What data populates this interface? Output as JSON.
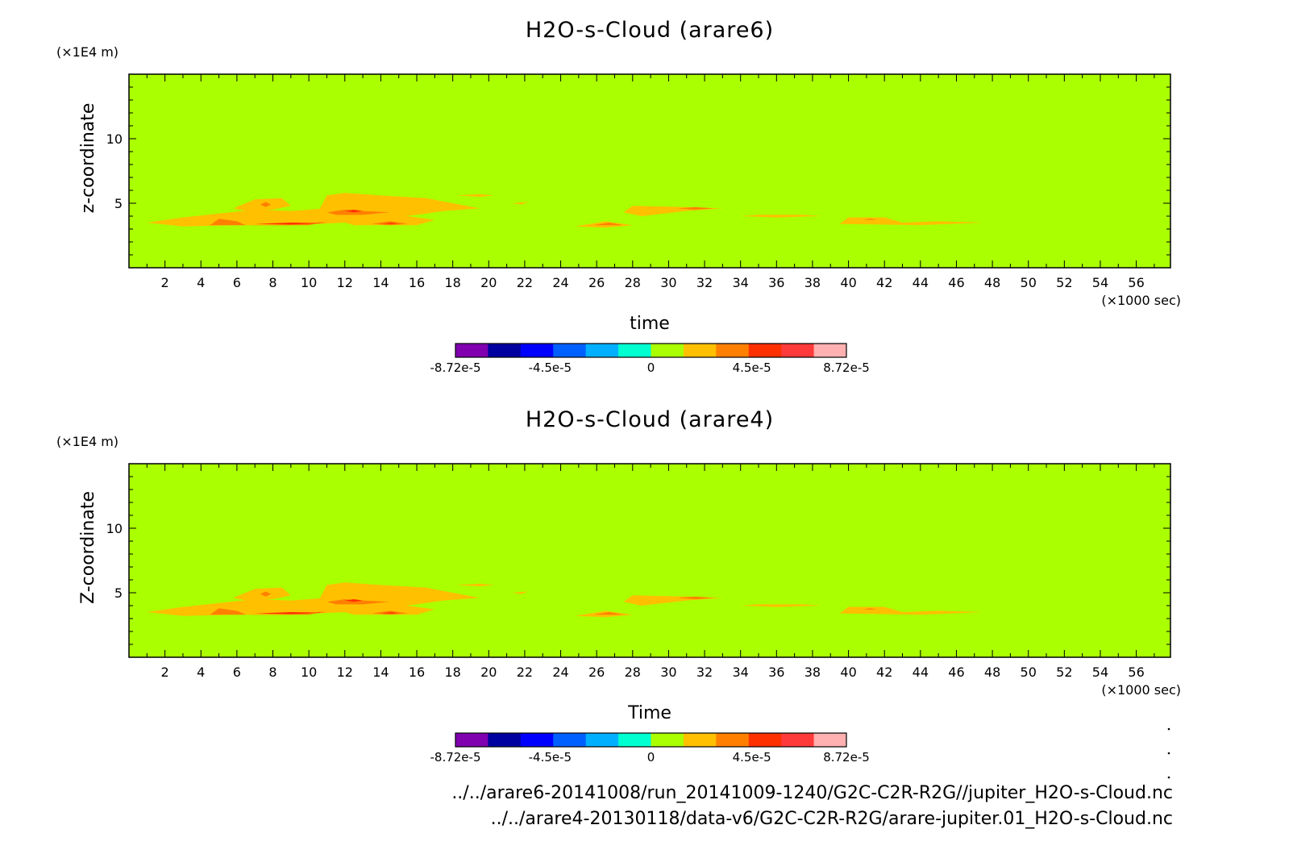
{
  "source_files": [
    "../../arare6-20141008/run_20141009-1240/G2C-C2R-R2G//jupiter_H2O-s-Cloud.nc",
    "../../arare4-20130118/data-v6/G2C-C2R-R2G/arare-jupiter.01_H2O-s-Cloud.nc"
  ],
  "colors": {
    "background_field": "#aaff00",
    "colorbar": [
      "#8000b0",
      "#0000a0",
      "#0000ff",
      "#0060ff",
      "#00b0ff",
      "#00ffd0",
      "#aaff00",
      "#ffc000",
      "#ff8000",
      "#ff3000",
      "#ff3a3a",
      "#ffb0b0"
    ]
  },
  "chart_data": [
    {
      "type": "heatmap",
      "title": "H2O-s-Cloud (arare6)",
      "xlabel": "time",
      "ylabel": "z-coordinate",
      "x_unit": "(×1000 sec)",
      "y_unit": "(×1E4 m)",
      "xlim": [
        0,
        57.9
      ],
      "ylim": [
        0,
        15
      ],
      "x_ticks": [
        2,
        4,
        6,
        8,
        10,
        12,
        14,
        16,
        18,
        20,
        22,
        24,
        26,
        28,
        30,
        32,
        34,
        36,
        38,
        40,
        42,
        44,
        46,
        48,
        50,
        52,
        54,
        56
      ],
      "y_ticks": [
        5,
        10
      ],
      "colorbar": {
        "tick_labels": [
          "-8.72e-5",
          "-4.5e-5",
          "0",
          "4.5e-5",
          "8.72e-5"
        ],
        "tick_values": [
          -8.72e-05,
          -4.5e-05,
          0,
          4.5e-05,
          8.72e-05
        ],
        "levels": 12
      },
      "field_value": 0,
      "features": [
        {
          "level": 1,
          "pts": [
            [
              1,
              3.5
            ],
            [
              3,
              3.2
            ],
            [
              6,
              3.3
            ],
            [
              9,
              3.3
            ],
            [
              12,
              3.5
            ],
            [
              12.5,
              3.3
            ],
            [
              16,
              3.3
            ],
            [
              17,
              3.7
            ],
            [
              14,
              4.3
            ],
            [
              12,
              4.6
            ],
            [
              11,
              4.6
            ],
            [
              9,
              4.4
            ],
            [
              7,
              4.5
            ],
            [
              5,
              4.2
            ],
            [
              3,
              3.9
            ]
          ]
        },
        {
          "level": 1,
          "pts": [
            [
              5.8,
              4.6
            ],
            [
              7,
              5.3
            ],
            [
              8.5,
              5.4
            ],
            [
              9,
              4.8
            ],
            [
              8,
              4.5
            ],
            [
              6.5,
              4.4
            ]
          ]
        },
        {
          "level": 1,
          "pts": [
            [
              10.5,
              4.3
            ],
            [
              11,
              5.6
            ],
            [
              12,
              5.8
            ],
            [
              14,
              5.6
            ],
            [
              16.5,
              5.4
            ],
            [
              18,
              5.0
            ],
            [
              19.5,
              4.6
            ],
            [
              17.5,
              4.4
            ],
            [
              16,
              4.1
            ],
            [
              14,
              3.8
            ],
            [
              12.5,
              3.9
            ]
          ]
        },
        {
          "level": 1,
          "pts": [
            [
              18.2,
              5.6
            ],
            [
              19.5,
              5.7
            ],
            [
              20.3,
              5.6
            ],
            [
              19.5,
              5.5
            ]
          ]
        },
        {
          "level": 1,
          "pts": [
            [
              21.3,
              5.0
            ],
            [
              22.2,
              5.1
            ],
            [
              21.8,
              4.9
            ]
          ]
        },
        {
          "level": 1,
          "pts": [
            [
              24.8,
              3.2
            ],
            [
              26.5,
              3.6
            ],
            [
              28,
              3.3
            ],
            [
              26.5,
              3.1
            ]
          ]
        },
        {
          "level": 1,
          "pts": [
            [
              27.5,
              4.3
            ],
            [
              28,
              4.8
            ],
            [
              31,
              4.7
            ],
            [
              33,
              4.6
            ],
            [
              31,
              4.4
            ],
            [
              28.5,
              4.0
            ]
          ]
        },
        {
          "level": 1,
          "pts": [
            [
              34,
              4.0
            ],
            [
              35,
              4.1
            ],
            [
              37.5,
              4.1
            ],
            [
              38.5,
              4.0
            ],
            [
              36,
              3.9
            ]
          ]
        },
        {
          "level": 1,
          "pts": [
            [
              39.5,
              3.4
            ],
            [
              40,
              3.9
            ],
            [
              42,
              3.9
            ],
            [
              43,
              3.5
            ],
            [
              45,
              3.6
            ],
            [
              47.5,
              3.5
            ],
            [
              44,
              3.3
            ]
          ]
        },
        {
          "level": 2,
          "pts": [
            [
              4.5,
              3.3
            ],
            [
              5,
              3.8
            ],
            [
              6,
              3.6
            ],
            [
              6.5,
              3.3
            ],
            [
              10,
              3.4
            ],
            [
              11,
              3.6
            ],
            [
              10,
              3.3
            ]
          ]
        },
        {
          "level": 2,
          "pts": [
            [
              7.3,
              4.9
            ],
            [
              7.6,
              5.1
            ],
            [
              7.9,
              4.9
            ],
            [
              7.6,
              4.7
            ]
          ]
        },
        {
          "level": 2,
          "pts": [
            [
              11,
              4.3
            ],
            [
              12,
              4.5
            ],
            [
              13,
              4.4
            ],
            [
              14.5,
              4.3
            ],
            [
              13,
              4.1
            ],
            [
              11.5,
              4.1
            ]
          ]
        },
        {
          "level": 2,
          "pts": [
            [
              13.5,
              3.4
            ],
            [
              14.5,
              3.6
            ],
            [
              15.5,
              3.4
            ],
            [
              14.5,
              3.3
            ]
          ]
        },
        {
          "level": 2,
          "pts": [
            [
              25.8,
              3.3
            ],
            [
              26.7,
              3.5
            ],
            [
              27.5,
              3.3
            ]
          ]
        },
        {
          "level": 2,
          "pts": [
            [
              30.5,
              4.6
            ],
            [
              31.5,
              4.7
            ],
            [
              32.5,
              4.6
            ],
            [
              31.5,
              4.5
            ]
          ]
        },
        {
          "level": 2,
          "pts": [
            [
              40.8,
              3.7
            ],
            [
              41.2,
              3.8
            ],
            [
              41.6,
              3.7
            ]
          ]
        },
        {
          "level": 3,
          "pts": [
            [
              12,
              4.4
            ],
            [
              12.5,
              4.5
            ],
            [
              13,
              4.4
            ],
            [
              12.5,
              4.3
            ]
          ]
        },
        {
          "level": 3,
          "pts": [
            [
              7,
              3.4
            ],
            [
              9,
              3.5
            ],
            [
              11,
              3.45
            ],
            [
              9,
              3.35
            ]
          ]
        },
        {
          "level": 3,
          "pts": [
            [
              14,
              3.4
            ],
            [
              14.6,
              3.5
            ],
            [
              15,
              3.4
            ]
          ]
        }
      ]
    },
    {
      "type": "heatmap",
      "title": "H2O-s-Cloud (arare4)",
      "xlabel": "Time",
      "ylabel": "Z-coordinate",
      "x_unit": "(×1000 sec)",
      "y_unit": "(×1E4 m)",
      "xlim": [
        0,
        57.9
      ],
      "ylim": [
        0,
        15
      ],
      "x_ticks": [
        2,
        4,
        6,
        8,
        10,
        12,
        14,
        16,
        18,
        20,
        22,
        24,
        26,
        28,
        30,
        32,
        34,
        36,
        38,
        40,
        42,
        44,
        46,
        48,
        50,
        52,
        54,
        56
      ],
      "y_ticks": [
        5,
        10
      ],
      "colorbar": {
        "tick_labels": [
          "-8.72e-5",
          "-4.5e-5",
          "0",
          "4.5e-5",
          "8.72e-5"
        ],
        "tick_values": [
          -8.72e-05,
          -4.5e-05,
          0,
          4.5e-05,
          8.72e-05
        ],
        "levels": 12
      },
      "field_value": 0,
      "features": [
        {
          "level": 1,
          "pts": [
            [
              1,
              3.5
            ],
            [
              3,
              3.2
            ],
            [
              6,
              3.3
            ],
            [
              9,
              3.3
            ],
            [
              12,
              3.5
            ],
            [
              12.5,
              3.3
            ],
            [
              16,
              3.3
            ],
            [
              17,
              3.7
            ],
            [
              14,
              4.3
            ],
            [
              12,
              4.6
            ],
            [
              11,
              4.6
            ],
            [
              9,
              4.4
            ],
            [
              7,
              4.5
            ],
            [
              5,
              4.2
            ],
            [
              3,
              3.9
            ]
          ]
        },
        {
          "level": 1,
          "pts": [
            [
              5.8,
              4.6
            ],
            [
              7,
              5.3
            ],
            [
              8.5,
              5.4
            ],
            [
              9,
              4.8
            ],
            [
              8,
              4.5
            ],
            [
              6.5,
              4.4
            ]
          ]
        },
        {
          "level": 1,
          "pts": [
            [
              10.5,
              4.3
            ],
            [
              11,
              5.6
            ],
            [
              12,
              5.8
            ],
            [
              14,
              5.6
            ],
            [
              16.5,
              5.4
            ],
            [
              18,
              5.0
            ],
            [
              19.5,
              4.6
            ],
            [
              17.5,
              4.4
            ],
            [
              16,
              4.1
            ],
            [
              14,
              3.8
            ],
            [
              12.5,
              3.9
            ]
          ]
        },
        {
          "level": 1,
          "pts": [
            [
              18.2,
              5.6
            ],
            [
              19.5,
              5.7
            ],
            [
              20.3,
              5.6
            ],
            [
              19.5,
              5.5
            ]
          ]
        },
        {
          "level": 1,
          "pts": [
            [
              21.3,
              5.0
            ],
            [
              22.2,
              5.1
            ],
            [
              21.8,
              4.9
            ]
          ]
        },
        {
          "level": 1,
          "pts": [
            [
              24.8,
              3.2
            ],
            [
              26.5,
              3.6
            ],
            [
              28,
              3.3
            ],
            [
              26.5,
              3.1
            ]
          ]
        },
        {
          "level": 1,
          "pts": [
            [
              27.5,
              4.3
            ],
            [
              28,
              4.8
            ],
            [
              31,
              4.7
            ],
            [
              33,
              4.6
            ],
            [
              31,
              4.4
            ],
            [
              28.5,
              4.0
            ]
          ]
        },
        {
          "level": 1,
          "pts": [
            [
              34,
              4.0
            ],
            [
              35,
              4.1
            ],
            [
              37.5,
              4.1
            ],
            [
              38.5,
              4.0
            ],
            [
              36,
              3.9
            ]
          ]
        },
        {
          "level": 1,
          "pts": [
            [
              39.5,
              3.4
            ],
            [
              40,
              3.9
            ],
            [
              42,
              3.9
            ],
            [
              43,
              3.5
            ],
            [
              45,
              3.6
            ],
            [
              47.5,
              3.5
            ],
            [
              44,
              3.3
            ]
          ]
        },
        {
          "level": 2,
          "pts": [
            [
              4.5,
              3.3
            ],
            [
              5,
              3.8
            ],
            [
              6,
              3.6
            ],
            [
              6.5,
              3.3
            ],
            [
              10,
              3.4
            ],
            [
              11,
              3.6
            ],
            [
              10,
              3.3
            ]
          ]
        },
        {
          "level": 2,
          "pts": [
            [
              7.3,
              4.9
            ],
            [
              7.6,
              5.1
            ],
            [
              7.9,
              4.9
            ],
            [
              7.6,
              4.7
            ]
          ]
        },
        {
          "level": 2,
          "pts": [
            [
              11,
              4.3
            ],
            [
              12,
              4.5
            ],
            [
              13,
              4.4
            ],
            [
              14.5,
              4.3
            ],
            [
              13,
              4.1
            ],
            [
              11.5,
              4.1
            ]
          ]
        },
        {
          "level": 2,
          "pts": [
            [
              13.5,
              3.4
            ],
            [
              14.5,
              3.6
            ],
            [
              15.5,
              3.4
            ],
            [
              14.5,
              3.3
            ]
          ]
        },
        {
          "level": 2,
          "pts": [
            [
              25.8,
              3.3
            ],
            [
              26.7,
              3.5
            ],
            [
              27.5,
              3.3
            ]
          ]
        },
        {
          "level": 2,
          "pts": [
            [
              30.5,
              4.6
            ],
            [
              31.5,
              4.7
            ],
            [
              32.5,
              4.6
            ],
            [
              31.5,
              4.5
            ]
          ]
        },
        {
          "level": 2,
          "pts": [
            [
              40.8,
              3.7
            ],
            [
              41.2,
              3.8
            ],
            [
              41.6,
              3.7
            ]
          ]
        },
        {
          "level": 3,
          "pts": [
            [
              12,
              4.4
            ],
            [
              12.5,
              4.5
            ],
            [
              13,
              4.4
            ],
            [
              12.5,
              4.3
            ]
          ]
        },
        {
          "level": 3,
          "pts": [
            [
              7,
              3.4
            ],
            [
              9,
              3.5
            ],
            [
              11,
              3.45
            ],
            [
              9,
              3.35
            ]
          ]
        },
        {
          "level": 3,
          "pts": [
            [
              14,
              3.4
            ],
            [
              14.6,
              3.5
            ],
            [
              15,
              3.4
            ]
          ]
        }
      ]
    }
  ]
}
